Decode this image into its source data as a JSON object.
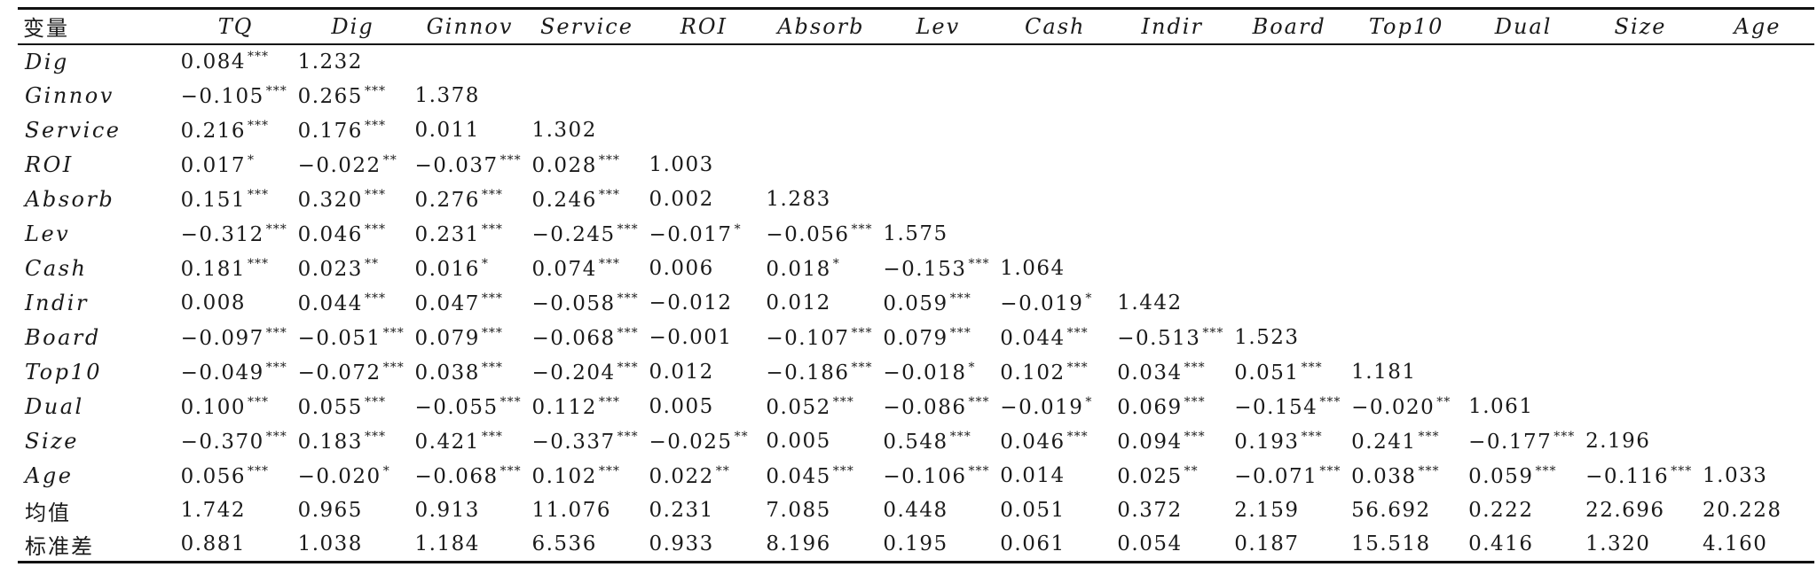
{
  "table": {
    "headers": [
      "变量",
      "TQ",
      "Dig",
      "Ginnov",
      "Service",
      "ROI",
      "Absorb",
      "Lev",
      "Cash",
      "Indir",
      "Board",
      "Top10",
      "Dual",
      "Size",
      "Age"
    ],
    "rows": [
      {
        "label": "Dig",
        "cells": [
          {
            "v": "0.084",
            "s": "***"
          },
          {
            "v": "1.232",
            "s": ""
          }
        ]
      },
      {
        "label": "Ginnov",
        "cells": [
          {
            "v": "−0.105",
            "s": "***"
          },
          {
            "v": "0.265",
            "s": "***"
          },
          {
            "v": "1.378",
            "s": ""
          }
        ]
      },
      {
        "label": "Service",
        "cells": [
          {
            "v": "0.216",
            "s": "***"
          },
          {
            "v": "0.176",
            "s": "***"
          },
          {
            "v": "0.011",
            "s": ""
          },
          {
            "v": "1.302",
            "s": ""
          }
        ]
      },
      {
        "label": "ROI",
        "cells": [
          {
            "v": "0.017",
            "s": "*"
          },
          {
            "v": "−0.022",
            "s": "**"
          },
          {
            "v": "−0.037",
            "s": "***"
          },
          {
            "v": "0.028",
            "s": "***"
          },
          {
            "v": "1.003",
            "s": ""
          }
        ]
      },
      {
        "label": "Absorb",
        "cells": [
          {
            "v": "0.151",
            "s": "***"
          },
          {
            "v": "0.320",
            "s": "***"
          },
          {
            "v": "0.276",
            "s": "***"
          },
          {
            "v": "0.246",
            "s": "***"
          },
          {
            "v": "0.002",
            "s": ""
          },
          {
            "v": "1.283",
            "s": ""
          }
        ]
      },
      {
        "label": "Lev",
        "cells": [
          {
            "v": "−0.312",
            "s": "***"
          },
          {
            "v": "0.046",
            "s": "***"
          },
          {
            "v": "0.231",
            "s": "***"
          },
          {
            "v": "−0.245",
            "s": "***"
          },
          {
            "v": "−0.017",
            "s": "*"
          },
          {
            "v": "−0.056",
            "s": "***"
          },
          {
            "v": "1.575",
            "s": ""
          }
        ]
      },
      {
        "label": "Cash",
        "cells": [
          {
            "v": "0.181",
            "s": "***"
          },
          {
            "v": "0.023",
            "s": "**"
          },
          {
            "v": "0.016",
            "s": "*"
          },
          {
            "v": "0.074",
            "s": "***"
          },
          {
            "v": "0.006",
            "s": ""
          },
          {
            "v": "0.018",
            "s": "*"
          },
          {
            "v": "−0.153",
            "s": "***"
          },
          {
            "v": "1.064",
            "s": ""
          }
        ]
      },
      {
        "label": "Indir",
        "cells": [
          {
            "v": "0.008",
            "s": ""
          },
          {
            "v": "0.044",
            "s": "***"
          },
          {
            "v": "0.047",
            "s": "***"
          },
          {
            "v": "−0.058",
            "s": "***"
          },
          {
            "v": "−0.012",
            "s": ""
          },
          {
            "v": "0.012",
            "s": ""
          },
          {
            "v": "0.059",
            "s": "***"
          },
          {
            "v": "−0.019",
            "s": "*"
          },
          {
            "v": "1.442",
            "s": ""
          }
        ]
      },
      {
        "label": "Board",
        "cells": [
          {
            "v": "−0.097",
            "s": "***"
          },
          {
            "v": "−0.051",
            "s": "***"
          },
          {
            "v": "0.079",
            "s": "***"
          },
          {
            "v": "−0.068",
            "s": "***"
          },
          {
            "v": "−0.001",
            "s": ""
          },
          {
            "v": "−0.107",
            "s": "***"
          },
          {
            "v": "0.079",
            "s": "***"
          },
          {
            "v": "0.044",
            "s": "***"
          },
          {
            "v": "−0.513",
            "s": "***"
          },
          {
            "v": "1.523",
            "s": ""
          }
        ]
      },
      {
        "label": "Top10",
        "cells": [
          {
            "v": "−0.049",
            "s": "***"
          },
          {
            "v": "−0.072",
            "s": "***"
          },
          {
            "v": "0.038",
            "s": "***"
          },
          {
            "v": "−0.204",
            "s": "***"
          },
          {
            "v": "0.012",
            "s": ""
          },
          {
            "v": "−0.186",
            "s": "***"
          },
          {
            "v": "−0.018",
            "s": "*"
          },
          {
            "v": "0.102",
            "s": "***"
          },
          {
            "v": "0.034",
            "s": "***"
          },
          {
            "v": "0.051",
            "s": "***"
          },
          {
            "v": "1.181",
            "s": ""
          }
        ]
      },
      {
        "label": "Dual",
        "cells": [
          {
            "v": "0.100",
            "s": "***"
          },
          {
            "v": "0.055",
            "s": "***"
          },
          {
            "v": "−0.055",
            "s": "***"
          },
          {
            "v": "0.112",
            "s": "***"
          },
          {
            "v": "0.005",
            "s": ""
          },
          {
            "v": "0.052",
            "s": "***"
          },
          {
            "v": "−0.086",
            "s": "***"
          },
          {
            "v": "−0.019",
            "s": "*"
          },
          {
            "v": "0.069",
            "s": "***"
          },
          {
            "v": "−0.154",
            "s": "***"
          },
          {
            "v": "−0.020",
            "s": "**"
          },
          {
            "v": "1.061",
            "s": ""
          }
        ]
      },
      {
        "label": "Size",
        "cells": [
          {
            "v": "−0.370",
            "s": "***"
          },
          {
            "v": "0.183",
            "s": "***"
          },
          {
            "v": "0.421",
            "s": "***"
          },
          {
            "v": "−0.337",
            "s": "***"
          },
          {
            "v": "−0.025",
            "s": "**"
          },
          {
            "v": "0.005",
            "s": ""
          },
          {
            "v": "0.548",
            "s": "***"
          },
          {
            "v": "0.046",
            "s": "***"
          },
          {
            "v": "0.094",
            "s": "***"
          },
          {
            "v": "0.193",
            "s": "***"
          },
          {
            "v": "0.241",
            "s": "***"
          },
          {
            "v": "−0.177",
            "s": "***"
          },
          {
            "v": "2.196",
            "s": ""
          }
        ]
      },
      {
        "label": "Age",
        "cells": [
          {
            "v": "0.056",
            "s": "***"
          },
          {
            "v": "−0.020",
            "s": "*"
          },
          {
            "v": "−0.068",
            "s": "***"
          },
          {
            "v": "0.102",
            "s": "***"
          },
          {
            "v": "0.022",
            "s": "**"
          },
          {
            "v": "0.045",
            "s": "***"
          },
          {
            "v": "−0.106",
            "s": "***"
          },
          {
            "v": "0.014",
            "s": ""
          },
          {
            "v": "0.025",
            "s": "**"
          },
          {
            "v": "−0.071",
            "s": "***"
          },
          {
            "v": "0.038",
            "s": "***"
          },
          {
            "v": "0.059",
            "s": "***"
          },
          {
            "v": "−0.116",
            "s": "***"
          },
          {
            "v": "1.033",
            "s": ""
          }
        ]
      },
      {
        "label": "均值",
        "cn": true,
        "cells": [
          {
            "v": "1.742",
            "s": ""
          },
          {
            "v": "0.965",
            "s": ""
          },
          {
            "v": "0.913",
            "s": ""
          },
          {
            "v": "11.076",
            "s": ""
          },
          {
            "v": "0.231",
            "s": ""
          },
          {
            "v": "7.085",
            "s": ""
          },
          {
            "v": "0.448",
            "s": ""
          },
          {
            "v": "0.051",
            "s": ""
          },
          {
            "v": "0.372",
            "s": ""
          },
          {
            "v": "2.159",
            "s": ""
          },
          {
            "v": "56.692",
            "s": ""
          },
          {
            "v": "0.222",
            "s": ""
          },
          {
            "v": "22.696",
            "s": ""
          },
          {
            "v": "20.228",
            "s": ""
          }
        ]
      },
      {
        "label": "标准差",
        "cn": true,
        "cells": [
          {
            "v": "0.881",
            "s": ""
          },
          {
            "v": "1.038",
            "s": ""
          },
          {
            "v": "1.184",
            "s": ""
          },
          {
            "v": "6.536",
            "s": ""
          },
          {
            "v": "0.933",
            "s": ""
          },
          {
            "v": "8.196",
            "s": ""
          },
          {
            "v": "0.195",
            "s": ""
          },
          {
            "v": "0.061",
            "s": ""
          },
          {
            "v": "0.054",
            "s": ""
          },
          {
            "v": "0.187",
            "s": ""
          },
          {
            "v": "15.518",
            "s": ""
          },
          {
            "v": "0.416",
            "s": ""
          },
          {
            "v": "1.320",
            "s": ""
          },
          {
            "v": "4.160",
            "s": ""
          }
        ]
      }
    ]
  }
}
